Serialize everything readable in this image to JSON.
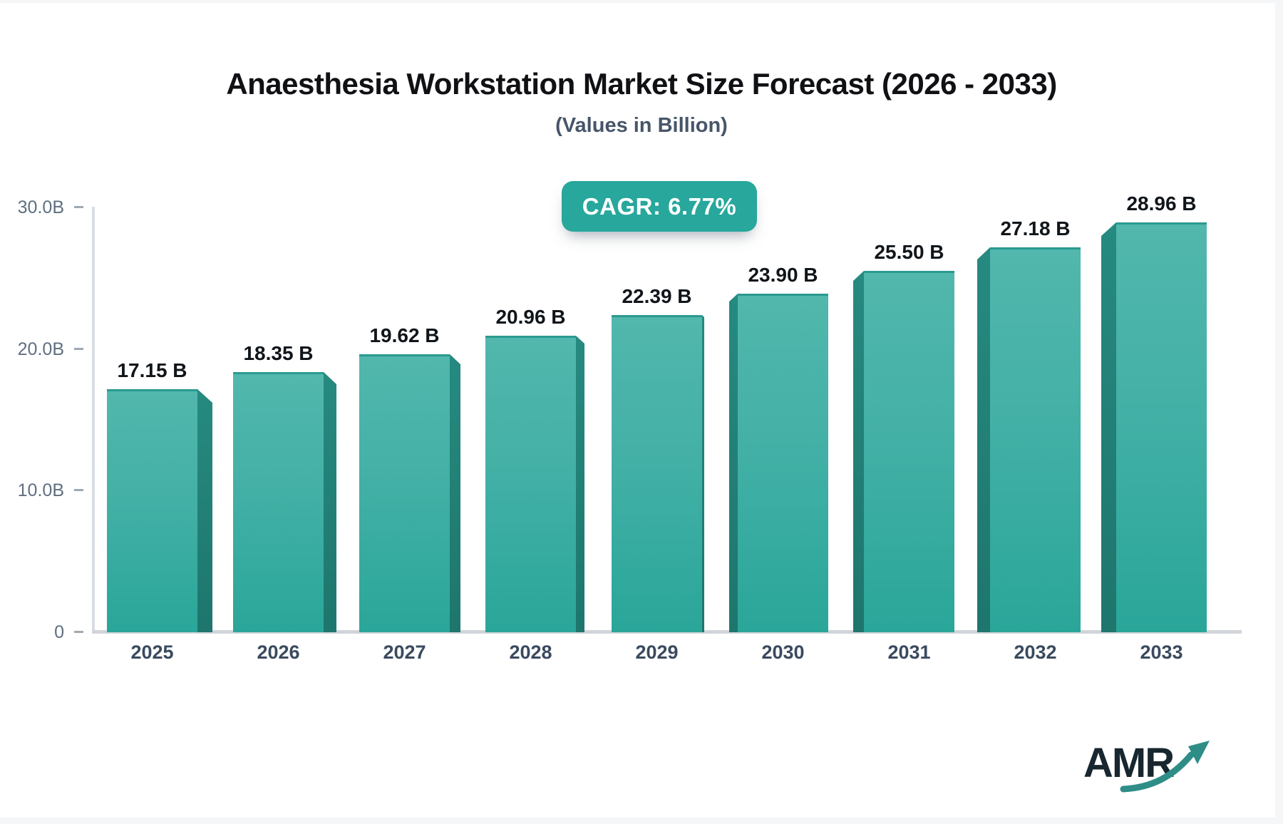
{
  "page": {
    "background": "#ffffff",
    "edge_color": "#f4f6f8"
  },
  "header": {
    "title": "Anaesthesia Workstation Market Size Forecast (2026 - 2033)",
    "subtitle": "(Values in Billion)"
  },
  "badge": {
    "label": "CAGR: 6.77%",
    "background": "#28a79c",
    "text_color": "#ffffff"
  },
  "chart_data": {
    "type": "bar",
    "title": "Anaesthesia Workstation Market Size Forecast (2026 - 2033)",
    "subtitle": "(Values in Billion)",
    "categories": [
      "2025",
      "2026",
      "2027",
      "2028",
      "2029",
      "2030",
      "2031",
      "2032",
      "2033"
    ],
    "values": [
      17.15,
      18.35,
      19.62,
      20.96,
      22.39,
      23.9,
      25.5,
      27.18,
      28.96
    ],
    "value_labels": [
      "17.15 B",
      "18.35 B",
      "19.62 B",
      "20.96 B",
      "22.39 B",
      "23.90 B",
      "25.50 B",
      "27.18 B",
      "28.96 B"
    ],
    "unit": "Billion",
    "cagr_label": "CAGR: 6.77%",
    "xlabel": "",
    "ylabel": "",
    "ylim": [
      0,
      30
    ],
    "yticks": [
      {
        "value": 30,
        "label": "30.0B"
      },
      {
        "value": 20,
        "label": "20.0B"
      },
      {
        "value": 10,
        "label": "10.0B"
      },
      {
        "value": 0,
        "label": "0"
      }
    ],
    "grid": false,
    "legend": "none",
    "style": "3d-perspective-bars",
    "colors": {
      "bar_front_top": "#52b7ad",
      "bar_front_bottom": "#2aa699",
      "bar_top_edge": "#2b9a90",
      "bar_side": "#217c73",
      "axis_line": "#d5d9de",
      "tick_label": "#5f6f80",
      "category_label": "#3a4a5f",
      "value_label": "#10151a"
    }
  },
  "logo": {
    "text": "AMR",
    "text_color": "#17262f",
    "arrow_icon": "growth-arrow-icon",
    "arrow_color": "#2f8d87"
  }
}
